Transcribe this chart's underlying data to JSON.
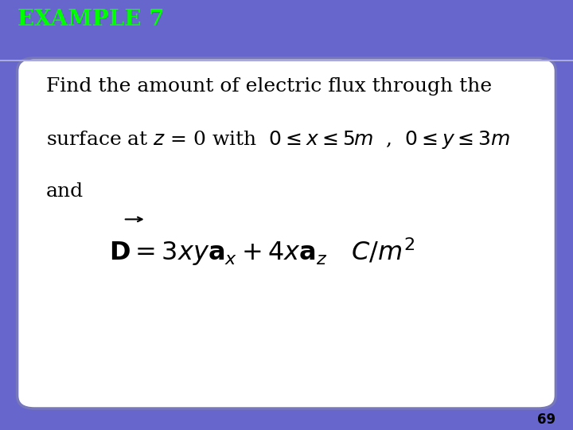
{
  "title": "EXAMPLE 7",
  "title_bg_color": "#6666CC",
  "title_text_color": "#00FF00",
  "slide_bg_color": "#FFFFFF",
  "border_color": "#7777BB",
  "line1": "Find the amount of electric flux through the",
  "line3": "and",
  "page_number": "69",
  "body_text_size": 18,
  "title_text_size": 20
}
